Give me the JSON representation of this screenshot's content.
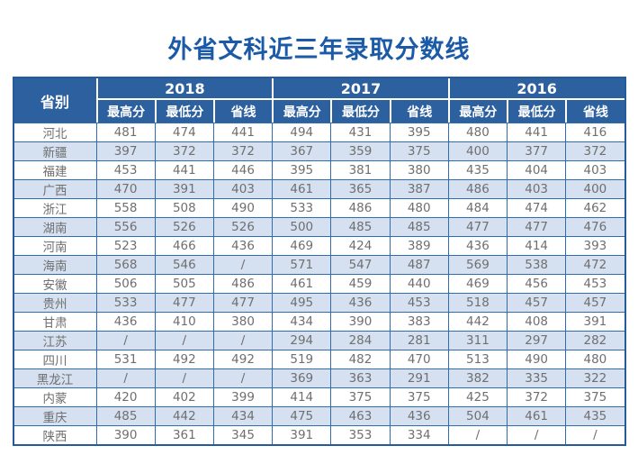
{
  "page": {
    "title": "外省文科近三年录取分数线"
  },
  "table": {
    "province_header": "省别",
    "year_groups": [
      "2018",
      "2017",
      "2016"
    ],
    "sub_headers": [
      "最高分",
      "最低分",
      "省线"
    ],
    "rows": [
      {
        "province": "河北",
        "scores": [
          "481",
          "474",
          "441",
          "494",
          "431",
          "395",
          "480",
          "441",
          "416"
        ]
      },
      {
        "province": "新疆",
        "scores": [
          "397",
          "372",
          "372",
          "367",
          "359",
          "375",
          "400",
          "377",
          "372"
        ]
      },
      {
        "province": "福建",
        "scores": [
          "453",
          "441",
          "446",
          "395",
          "381",
          "380",
          "435",
          "404",
          "403"
        ]
      },
      {
        "province": "广西",
        "scores": [
          "470",
          "391",
          "403",
          "461",
          "365",
          "387",
          "486",
          "403",
          "400"
        ]
      },
      {
        "province": "浙江",
        "scores": [
          "558",
          "508",
          "490",
          "533",
          "486",
          "480",
          "484",
          "474",
          "462"
        ]
      },
      {
        "province": "湖南",
        "scores": [
          "556",
          "526",
          "526",
          "500",
          "485",
          "485",
          "477",
          "477",
          "476"
        ]
      },
      {
        "province": "河南",
        "scores": [
          "523",
          "466",
          "436",
          "469",
          "424",
          "389",
          "436",
          "414",
          "393"
        ]
      },
      {
        "province": "海南",
        "scores": [
          "568",
          "546",
          "/",
          "571",
          "547",
          "487",
          "569",
          "538",
          "472"
        ]
      },
      {
        "province": "安徽",
        "scores": [
          "506",
          "505",
          "486",
          "461",
          "459",
          "440",
          "469",
          "456",
          "453"
        ]
      },
      {
        "province": "贵州",
        "scores": [
          "533",
          "477",
          "477",
          "495",
          "436",
          "453",
          "518",
          "457",
          "457"
        ]
      },
      {
        "province": "甘肃",
        "scores": [
          "436",
          "410",
          "380",
          "434",
          "390",
          "383",
          "442",
          "408",
          "391"
        ]
      },
      {
        "province": "江苏",
        "scores": [
          "/",
          "/",
          "/",
          "294",
          "284",
          "281",
          "311",
          "297",
          "282"
        ]
      },
      {
        "province": "四川",
        "scores": [
          "531",
          "492",
          "492",
          "519",
          "482",
          "470",
          "513",
          "490",
          "480"
        ]
      },
      {
        "province": "黑龙江",
        "scores": [
          "/",
          "/",
          "/",
          "369",
          "363",
          "291",
          "382",
          "335",
          "322"
        ]
      },
      {
        "province": "内蒙",
        "scores": [
          "420",
          "402",
          "399",
          "414",
          "375",
          "375",
          "425",
          "372",
          "375"
        ]
      },
      {
        "province": "重庆",
        "scores": [
          "485",
          "442",
          "434",
          "475",
          "463",
          "436",
          "504",
          "461",
          "435"
        ]
      },
      {
        "province": "陕西",
        "scores": [
          "390",
          "361",
          "345",
          "391",
          "353",
          "334",
          "/",
          "/",
          "/"
        ]
      }
    ]
  },
  "colors": {
    "header_bg": "#2d609f",
    "border": "#2e6db0",
    "outer_border": "#255a9b",
    "row_alt_bg": "#d5e1f1",
    "title": "#1b5aa7",
    "text": "#6f6f6f",
    "header_text": "#ffffff"
  }
}
